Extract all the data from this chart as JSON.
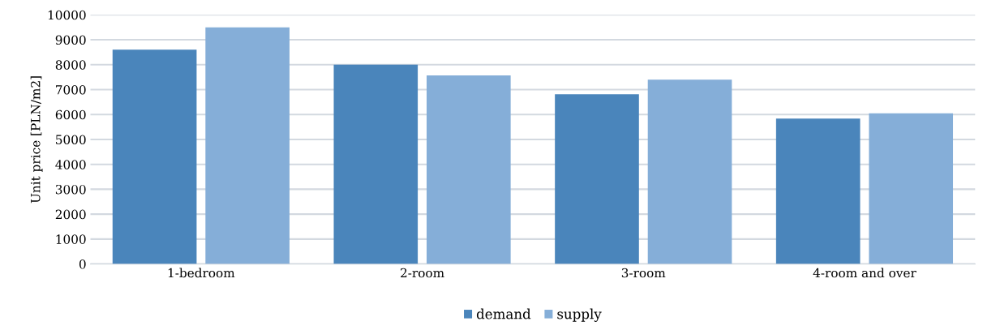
{
  "chart_data": {
    "type": "bar",
    "ylabel": "Unit price [PLN/m2]",
    "categories": [
      "1-bedroom",
      "2-room",
      "3-room",
      "4-room and over"
    ],
    "series": [
      {
        "name": "demand",
        "color": "#4a85bb",
        "values": [
          8600,
          8000,
          6810,
          5840
        ]
      },
      {
        "name": "supply",
        "color": "#85aed8",
        "values": [
          9500,
          7570,
          7400,
          6050
        ]
      }
    ],
    "ylim": [
      0,
      10000
    ],
    "yticks": [
      0,
      1000,
      2000,
      3000,
      4000,
      5000,
      6000,
      7000,
      8000,
      9000,
      10000
    ],
    "grid": "y",
    "legend": "bottom"
  }
}
